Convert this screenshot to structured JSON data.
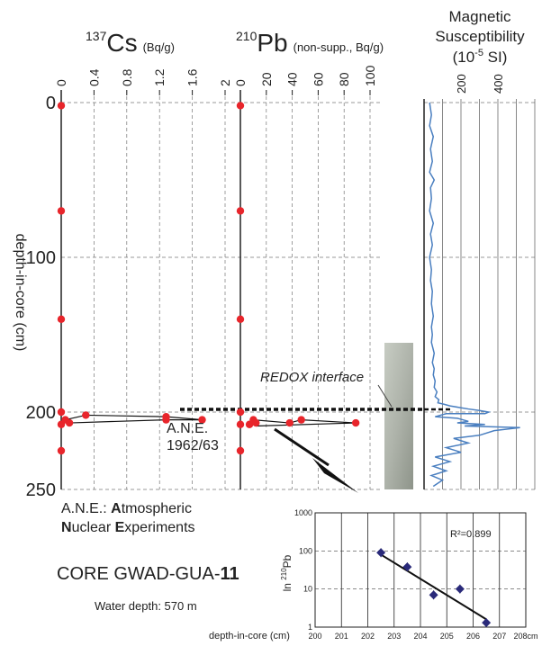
{
  "chart_data": [
    {
      "type": "scatter",
      "title_parts": {
        "superscript": "137",
        "element": "Cs",
        "unit": "(Bq/g)"
      },
      "ylabel": "depth-in-core (cm)",
      "yticks": [
        "0",
        "100",
        "200",
        "250"
      ],
      "ylim": [
        0,
        250
      ],
      "xticks": [
        "0",
        "0.4",
        "0.8",
        "1.2",
        "1.6",
        "2"
      ],
      "xlim": [
        0,
        2.0
      ],
      "grid": true,
      "series": [
        {
          "points": [
            {
              "x": 0,
              "y": 2
            },
            {
              "x": 0,
              "y": 70
            },
            {
              "x": 0,
              "y": 140
            },
            {
              "x": 0,
              "y": 200
            },
            {
              "x": 0,
              "y": 208
            },
            {
              "x": 0,
              "y": 225
            },
            {
              "x": 0.05,
              "y": 205
            },
            {
              "x": 0.1,
              "y": 207
            },
            {
              "x": 0.3,
              "y": 202
            },
            {
              "x": 1.28,
              "y": 203
            },
            {
              "x": 1.28,
              "y": 205
            },
            {
              "x": 1.72,
              "y": 205
            }
          ],
          "connected": [
            {
              "x": 0.05,
              "y": 205
            },
            {
              "x": 0.3,
              "y": 202
            },
            {
              "x": 1.28,
              "y": 203
            },
            {
              "x": 1.72,
              "y": 205
            },
            {
              "x": 1.28,
              "y": 205
            },
            {
              "x": 0.1,
              "y": 207
            }
          ],
          "color": "#e8252b"
        }
      ],
      "annotations": {
        "ane_line1": "A.N.E.",
        "ane_line2": "1962/63"
      }
    },
    {
      "type": "scatter",
      "title_parts": {
        "superscript": "210",
        "element": "Pb",
        "unit": "(non-supp., Bq/g)"
      },
      "xticks": [
        "0",
        "20",
        "40",
        "60",
        "80",
        "100"
      ],
      "xlim": [
        0,
        100
      ],
      "ylim": [
        0,
        250
      ],
      "grid": true,
      "series": [
        {
          "points": [
            {
              "x": 0,
              "y": 2
            },
            {
              "x": 0,
              "y": 70
            },
            {
              "x": 0,
              "y": 140
            },
            {
              "x": 0,
              "y": 200
            },
            {
              "x": 0,
              "y": 208
            },
            {
              "x": 0,
              "y": 225
            },
            {
              "x": 7,
              "y": 208
            },
            {
              "x": 10,
              "y": 205
            },
            {
              "x": 12,
              "y": 207
            },
            {
              "x": 38,
              "y": 207
            },
            {
              "x": 47,
              "y": 205
            },
            {
              "x": 89,
              "y": 207
            }
          ],
          "connected": [
            {
              "x": 7,
              "y": 208
            },
            {
              "x": 12,
              "y": 207
            },
            {
              "x": 10,
              "y": 205
            },
            {
              "x": 38,
              "y": 207
            },
            {
              "x": 47,
              "y": 205
            },
            {
              "x": 89,
              "y": 207
            },
            {
              "x": 12,
              "y": 209
            }
          ],
          "color": "#e8252b"
        }
      ],
      "annotations": {
        "redox": "REDOX interface"
      }
    },
    {
      "type": "line",
      "title_lines": [
        "Magnetic",
        "Susceptibility",
        "(10",
        "-5",
        " SI)"
      ],
      "xticks": [
        "200",
        "400"
      ],
      "xlim": [
        0,
        600
      ],
      "ylim": [
        0,
        250
      ],
      "grid": true,
      "series": [
        {
          "x": [
            30,
            40,
            30,
            50,
            35,
            45,
            30,
            55,
            35,
            40,
            30,
            50,
            35,
            45,
            30,
            40,
            35,
            45,
            40,
            50,
            40,
            45,
            40,
            55,
            45,
            55,
            50,
            60,
            55,
            70,
            60,
            80,
            75,
            110,
            140,
            190,
            240,
            300,
            350,
            330,
            120,
            90,
            60,
            180,
            240,
            180,
            330,
            220,
            520,
            380,
            300,
            160,
            240,
            120,
            200,
            60,
            140,
            50,
            120,
            40,
            100,
            50
          ],
          "y": [
            0,
            8,
            15,
            22,
            30,
            38,
            45,
            50,
            55,
            62,
            70,
            78,
            85,
            92,
            100,
            108,
            115,
            122,
            130,
            138,
            145,
            150,
            155,
            162,
            168,
            172,
            176,
            180,
            184,
            187,
            190,
            192,
            194,
            195,
            196,
            197,
            198,
            199,
            200,
            201,
            201,
            202,
            203,
            204,
            206,
            207,
            208,
            209,
            210,
            212,
            215,
            217,
            220,
            223,
            226,
            229,
            232,
            235,
            238,
            241,
            244,
            248
          ],
          "color": "#4a7fc0"
        }
      ]
    },
    {
      "type": "scatter",
      "ylabel_parts": {
        "prefix": "ln ",
        "superscript": "210",
        "element": "Pb"
      },
      "xlabel": "depth-in-core (cm)",
      "xticks": [
        "200",
        "201",
        "202",
        "203",
        "204",
        "205",
        "206",
        "207",
        "208cm"
      ],
      "xlim": [
        200,
        208
      ],
      "yticks": [
        "1",
        "10",
        "100",
        "1000"
      ],
      "ylim": [
        1,
        1000
      ],
      "yscale": "log",
      "grid": true,
      "r2_label": "R²=0.899",
      "series": [
        {
          "points": [
            {
              "x": 202.5,
              "y": 90
            },
            {
              "x": 203.5,
              "y": 38
            },
            {
              "x": 204.5,
              "y": 7
            },
            {
              "x": 205.5,
              "y": 10
            },
            {
              "x": 206.5,
              "y": 1.3
            }
          ],
          "color": "#2a2a7a"
        }
      ],
      "trendline": {
        "x": [
          202.5,
          206.5
        ],
        "y": [
          80,
          1.6
        ]
      }
    }
  ],
  "legend_text": {
    "line1": "A.N.E.: ",
    "line1_bold": "A",
    "line1_rest": "tmospheric",
    "line2_bold_n": "N",
    "line2_mid": "uclear ",
    "line2_bold_e": "E",
    "line2_rest": "xperiments"
  },
  "core_title": {
    "prefix": "CORE GWAD-GUA-",
    "bold": "11"
  },
  "water_depth": "Water depth: 570 m"
}
